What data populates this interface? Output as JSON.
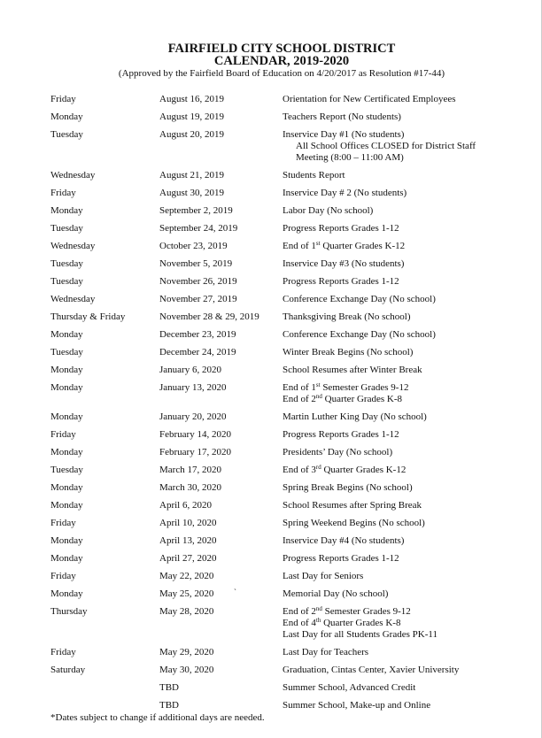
{
  "header": {
    "title": "FAIRFIELD CITY SCHOOL DISTRICT",
    "subtitle": "CALENDAR, 2019-2020",
    "approval": "(Approved by the Fairfield Board of Education on 4/20/2017 as Resolution #17-44)"
  },
  "rows": [
    {
      "day": "Friday",
      "date": "August 16, 2019",
      "lines": [
        {
          "parts": [
            "Orientation for New Certificated Employees"
          ]
        }
      ]
    },
    {
      "day": "Monday",
      "date": "August 19, 2019",
      "lines": [
        {
          "parts": [
            "Teachers Report (No students)"
          ]
        }
      ]
    },
    {
      "day": "Tuesday",
      "date": "August 20, 2019",
      "lines": [
        {
          "parts": [
            "Inservice Day #1 (No students)"
          ]
        },
        {
          "parts": [
            "All School Offices CLOSED for District Staff"
          ],
          "indent": true
        },
        {
          "parts": [
            "Meeting (8:00 – 11:00 AM)"
          ],
          "indent": true
        }
      ]
    },
    {
      "day": "Wednesday",
      "date": "August 21, 2019",
      "lines": [
        {
          "parts": [
            "Students Report"
          ]
        }
      ]
    },
    {
      "day": "Friday",
      "date": "August 30, 2019",
      "lines": [
        {
          "parts": [
            "Inservice Day # 2 (No students)"
          ]
        }
      ]
    },
    {
      "day": "Monday",
      "date": "September 2, 2019",
      "lines": [
        {
          "parts": [
            "Labor Day (No school)"
          ]
        }
      ]
    },
    {
      "day": "Tuesday",
      "date": "September 24, 2019",
      "lines": [
        {
          "parts": [
            "Progress Reports Grades 1-12"
          ]
        }
      ]
    },
    {
      "day": "Wednesday",
      "date": "October 23, 2019",
      "lines": [
        {
          "parts": [
            "End of 1",
            "st",
            " Quarter Grades K-12"
          ]
        }
      ]
    },
    {
      "day": "Tuesday",
      "date": "November 5, 2019",
      "lines": [
        {
          "parts": [
            "Inservice Day #3 (No students)"
          ]
        }
      ]
    },
    {
      "day": "Tuesday",
      "date": "November 26, 2019",
      "lines": [
        {
          "parts": [
            "Progress Reports Grades 1-12"
          ]
        }
      ]
    },
    {
      "day": "Wednesday",
      "date": "November 27, 2019",
      "lines": [
        {
          "parts": [
            "Conference Exchange Day (No school)"
          ]
        }
      ]
    },
    {
      "day": "Thursday & Friday",
      "date": "November 28 & 29, 2019",
      "lines": [
        {
          "parts": [
            "Thanksgiving Break (No school)"
          ]
        }
      ]
    },
    {
      "day": "Monday",
      "date": "December 23, 2019",
      "lines": [
        {
          "parts": [
            "Conference Exchange Day (No school)"
          ]
        }
      ]
    },
    {
      "day": "Tuesday",
      "date": "December 24, 2019",
      "lines": [
        {
          "parts": [
            "Winter Break Begins (No school)"
          ]
        }
      ]
    },
    {
      "day": "Monday",
      "date": "January 6, 2020",
      "lines": [
        {
          "parts": [
            "School Resumes after Winter Break"
          ]
        }
      ]
    },
    {
      "day": "Monday",
      "date": "January 13, 2020",
      "lines": [
        {
          "parts": [
            "End of 1",
            "st",
            " Semester Grades 9-12"
          ]
        },
        {
          "parts": [
            "End of 2",
            "nd",
            " Quarter Grades K-8"
          ]
        }
      ]
    },
    {
      "day": "Monday",
      "date": "January 20, 2020",
      "lines": [
        {
          "parts": [
            "Martin Luther King Day (No school)"
          ]
        }
      ]
    },
    {
      "day": "Friday",
      "date": "February 14, 2020",
      "lines": [
        {
          "parts": [
            "Progress Reports Grades 1-12"
          ]
        }
      ]
    },
    {
      "day": "Monday",
      "date": "February 17, 2020",
      "lines": [
        {
          "parts": [
            "Presidents’ Day (No school)"
          ]
        }
      ]
    },
    {
      "day": "Tuesday",
      "date": "March 17, 2020",
      "lines": [
        {
          "parts": [
            "End of 3",
            "rd",
            " Quarter Grades K-12"
          ]
        }
      ]
    },
    {
      "day": "Monday",
      "date": "March 30, 2020",
      "lines": [
        {
          "parts": [
            "Spring Break Begins (No school)"
          ]
        }
      ]
    },
    {
      "day": "Monday",
      "date": "April 6, 2020",
      "lines": [
        {
          "parts": [
            "School Resumes after Spring Break"
          ]
        }
      ]
    },
    {
      "day": "Friday",
      "date": "April 10, 2020",
      "lines": [
        {
          "parts": [
            "Spring Weekend Begins (No school)"
          ]
        }
      ]
    },
    {
      "day": "Monday",
      "date": "April 13, 2020",
      "lines": [
        {
          "parts": [
            "Inservice Day #4 (No students)"
          ]
        }
      ]
    },
    {
      "day": "Monday",
      "date": "April 27, 2020",
      "lines": [
        {
          "parts": [
            "Progress Reports Grades 1-12"
          ]
        }
      ]
    },
    {
      "day": "Friday",
      "date": "May 22, 2020",
      "lines": [
        {
          "parts": [
            "Last Day for Seniors"
          ]
        }
      ]
    },
    {
      "day": "Monday",
      "date": "May 25, 2020",
      "stray": "`",
      "lines": [
        {
          "parts": [
            "Memorial Day (No school)"
          ]
        }
      ]
    },
    {
      "day": "Thursday",
      "date": "May 28, 2020",
      "lines": [
        {
          "parts": [
            "End of 2",
            "nd",
            " Semester Grades 9-12"
          ]
        },
        {
          "parts": [
            "End of 4",
            "th",
            " Quarter Grades K-8"
          ]
        },
        {
          "parts": [
            "Last Day for all Students Grades PK-11"
          ]
        }
      ]
    },
    {
      "day": "Friday",
      "date": "May 29, 2020",
      "lines": [
        {
          "parts": [
            "Last Day for Teachers"
          ]
        }
      ]
    },
    {
      "day": "Saturday",
      "date": "May 30, 2020",
      "lines": [
        {
          "parts": [
            "Graduation, Cintas Center, Xavier University"
          ]
        }
      ]
    },
    {
      "day": "",
      "date": "TBD",
      "lines": [
        {
          "parts": [
            "Summer School, Advanced Credit"
          ]
        }
      ]
    },
    {
      "day": "",
      "date": "TBD",
      "lines": [
        {
          "parts": [
            "Summer School, Make-up and Online"
          ]
        }
      ]
    }
  ],
  "footnote": "*Dates subject to change if additional days are needed."
}
